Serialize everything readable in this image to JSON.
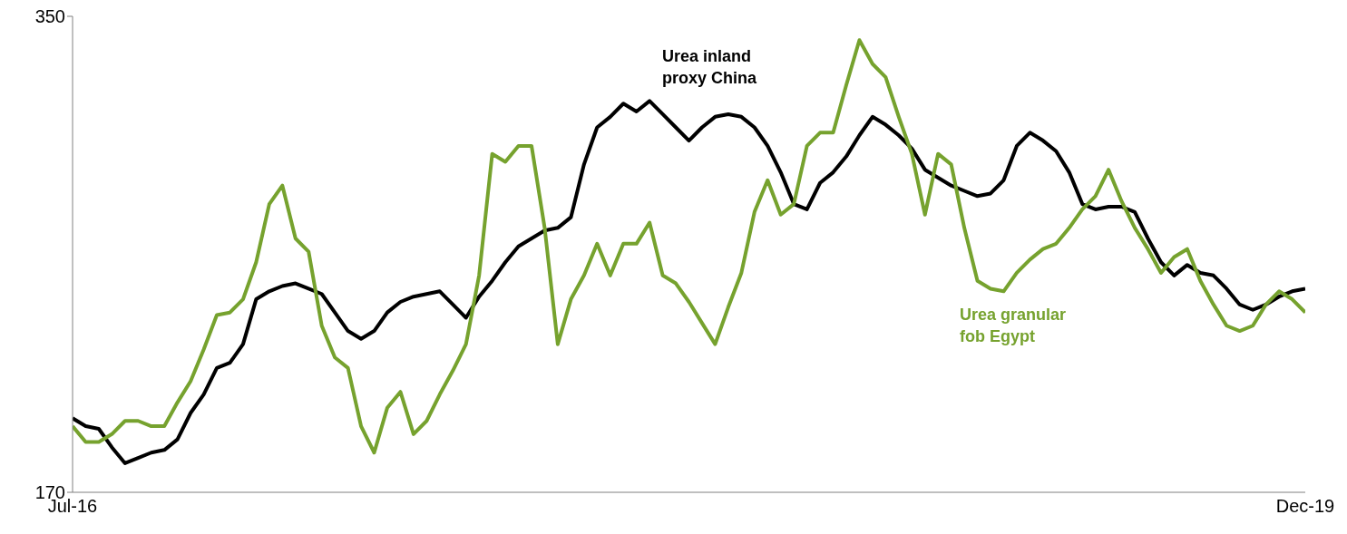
{
  "chart_data": {
    "type": "line",
    "categories": [
      "Jul-16",
      null,
      null,
      null,
      null,
      null,
      null,
      null,
      null,
      null,
      null,
      null,
      null,
      null,
      null,
      null,
      null,
      null,
      null,
      null,
      null,
      null,
      null,
      null,
      null,
      null,
      null,
      null,
      null,
      null,
      null,
      null,
      null,
      null,
      null,
      null,
      null,
      null,
      null,
      null,
      null,
      null,
      null,
      null,
      null,
      null,
      null,
      null,
      null,
      null,
      null,
      null,
      null,
      null,
      null,
      null,
      null,
      null,
      null,
      null,
      null,
      null,
      null,
      null,
      null,
      null,
      null,
      null,
      null,
      null,
      null,
      null,
      null,
      null,
      null,
      null,
      null,
      null,
      null,
      null,
      null,
      null,
      null,
      null,
      null,
      null,
      null,
      null,
      null,
      null,
      null,
      null,
      null,
      null,
      "Dec-19"
    ],
    "series": [
      {
        "name": "Urea inland proxy China",
        "color": "#000000",
        "values": [
          198,
          195,
          194,
          187,
          181,
          183,
          185,
          186,
          190,
          200,
          207,
          217,
          219,
          226,
          243,
          246,
          248,
          249,
          247,
          245,
          238,
          231,
          228,
          231,
          238,
          242,
          244,
          245,
          246,
          241,
          236,
          244,
          250,
          257,
          263,
          266,
          269,
          270,
          274,
          294,
          308,
          312,
          317,
          314,
          318,
          313,
          308,
          303,
          308,
          312,
          313,
          312,
          308,
          301,
          291,
          279,
          277,
          287,
          291,
          297,
          305,
          312,
          309,
          305,
          300,
          292,
          289,
          286,
          284,
          282,
          283,
          288,
          301,
          306,
          303,
          299,
          291,
          279,
          277,
          278,
          278,
          276,
          266,
          257,
          252,
          256,
          253,
          252,
          247,
          241,
          239,
          241,
          244,
          246,
          247
        ]
      },
      {
        "name": "Urea granular fob Egypt",
        "color": "#76a22e",
        "values": [
          195,
          189,
          189,
          192,
          197,
          197,
          195,
          195,
          204,
          212,
          224,
          237,
          238,
          243,
          257,
          279,
          286,
          266,
          261,
          233,
          221,
          217,
          195,
          185,
          202,
          208,
          192,
          197,
          207,
          216,
          226,
          252,
          298,
          295,
          301,
          301,
          270,
          226,
          243,
          252,
          264,
          252,
          264,
          264,
          272,
          252,
          249,
          242,
          234,
          226,
          240,
          253,
          276,
          288,
          275,
          279,
          301,
          306,
          306,
          324,
          341,
          332,
          327,
          312,
          298,
          275,
          298,
          294,
          270,
          250,
          247,
          246,
          253,
          258,
          262,
          264,
          270,
          277,
          282,
          292,
          280,
          270,
          262,
          253,
          259,
          262,
          250,
          241,
          233,
          231,
          233,
          241,
          246,
          243,
          238
        ]
      }
    ],
    "ylim": [
      170,
      350
    ],
    "yticks": [
      170,
      350
    ],
    "grid": false,
    "legend": false,
    "marker": "none",
    "line_style": "solid"
  }
}
